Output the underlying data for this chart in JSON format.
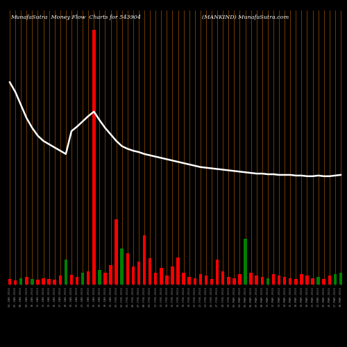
{
  "title_left": "MunafaSutra  Money Flow  Charts for 543904",
  "title_right": "(MANKIND) MunafaSutra.com",
  "background_color": "#000000",
  "bar_line_color": "#b35a00",
  "white_line_color": "#ffffff",
  "categories": [
    "04-JAN-2024",
    "05-JAN-2024",
    "08-JAN-2024",
    "09-JAN-2024",
    "10-JAN-2024",
    "11-JAN-2024",
    "12-JAN-2024",
    "15-JAN-2024",
    "16-JAN-2024",
    "17-JAN-2024",
    "18-JAN-2024",
    "19-JAN-2024",
    "22-JAN-2024",
    "23-JAN-2024",
    "24-JAN-2024",
    "25-JAN-2024",
    "29-JAN-2024",
    "30-JAN-2024",
    "31-JAN-2024",
    "01-FEB-2024",
    "02-FEB-2024",
    "05-FEB-2024",
    "06-FEB-2024",
    "07-FEB-2024",
    "08-FEB-2024",
    "09-FEB-2024",
    "12-FEB-2024",
    "13-FEB-2024",
    "14-FEB-2024",
    "15-FEB-2024",
    "16-FEB-2024",
    "19-FEB-2024",
    "20-FEB-2024",
    "21-FEB-2024",
    "22-FEB-2024",
    "23-FEB-2024",
    "26-FEB-2024",
    "27-FEB-2024",
    "28-FEB-2024",
    "29-FEB-2024",
    "01-MAR-2024",
    "04-MAR-2024",
    "05-MAR-2024",
    "06-MAR-2024",
    "07-MAR-2024",
    "08-MAR-2024",
    "11-MAR-2024",
    "12-MAR-2024",
    "13-MAR-2024",
    "14-MAR-2024",
    "15-MAR-2024",
    "18-MAR-2024",
    "19-MAR-2024",
    "20-MAR-2024",
    "21-MAR-2024",
    "22-MAR-2024",
    "25-MAR-2024",
    "26-MAR-2024",
    "27-MAR-2024",
    "28-MAR-2024"
  ],
  "bar_heights": [
    8,
    6,
    10,
    12,
    8,
    7,
    10,
    9,
    7,
    14,
    38,
    15,
    12,
    18,
    20,
    390,
    22,
    18,
    30,
    100,
    55,
    48,
    28,
    35,
    75,
    40,
    18,
    25,
    14,
    28,
    42,
    18,
    12,
    10,
    16,
    14,
    9,
    38,
    20,
    12,
    10,
    16,
    70,
    18,
    14,
    12,
    10,
    16,
    14,
    12,
    10,
    9,
    16,
    14,
    10,
    12,
    9,
    14,
    16,
    18
  ],
  "bar_colors": [
    "red",
    "red",
    "green",
    "red",
    "green",
    "red",
    "red",
    "red",
    "red",
    "red",
    "green",
    "red",
    "red",
    "green",
    "red",
    "red",
    "green",
    "red",
    "red",
    "red",
    "green",
    "red",
    "red",
    "red",
    "red",
    "red",
    "red",
    "red",
    "red",
    "red",
    "red",
    "red",
    "red",
    "red",
    "red",
    "red",
    "red",
    "red",
    "red",
    "red",
    "red",
    "red",
    "green",
    "red",
    "red",
    "red",
    "green",
    "red",
    "red",
    "red",
    "red",
    "red",
    "red",
    "red",
    "red",
    "green",
    "red",
    "red",
    "green",
    "green"
  ],
  "line_values": [
    310,
    295,
    275,
    255,
    240,
    228,
    220,
    215,
    210,
    205,
    200,
    235,
    242,
    250,
    258,
    265,
    252,
    240,
    230,
    220,
    212,
    208,
    205,
    203,
    200,
    198,
    196,
    194,
    192,
    190,
    188,
    186,
    184,
    182,
    180,
    179,
    178,
    177,
    176,
    175,
    174,
    173,
    172,
    171,
    170,
    170,
    169,
    169,
    168,
    168,
    168,
    167,
    167,
    166,
    166,
    167,
    166,
    166,
    167,
    168
  ],
  "ylim_max": 420
}
